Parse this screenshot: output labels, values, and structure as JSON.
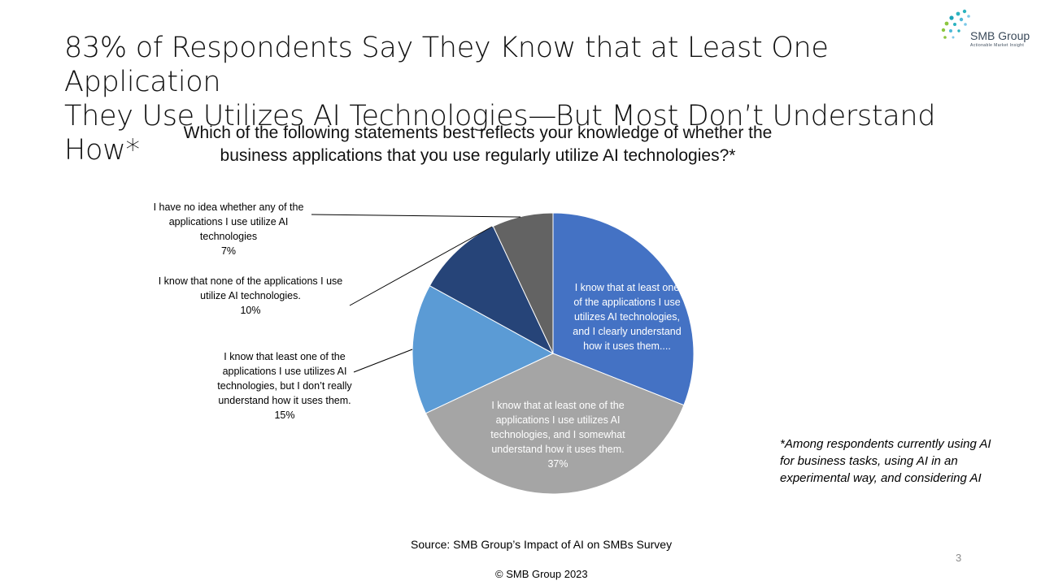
{
  "slide": {
    "title_line1": "83% of Respondents Say They Know that at Least One Application",
    "title_line2": "They Use Utilizes AI Technologies—But Most Don’t Understand How*",
    "question_line1": "Which of the following statements best reflects your knowledge of whether the",
    "question_line2": "business applications that you use regularly utilize AI  technologies?*",
    "footnote": "*Among respondents currently using AI for business tasks, using AI in an experimental way, and considering AI",
    "source": "Source: SMB Group’s Impact of AI on SMBs Survey",
    "page_number": "3",
    "copyright": "© SMB Group  2023"
  },
  "logo": {
    "name": "SMB Group",
    "tagline": "Actionable Market Insight",
    "dot_color": "#2bb3c0"
  },
  "chart_data": {
    "type": "pie",
    "start_angle_deg": 0,
    "direction": "clockwise",
    "slices": [
      {
        "label_lines": [
          "I know that at least one",
          "of the applications I use",
          "utilizes AI technologies,",
          "and I clearly understand",
          "how it uses them...."
        ],
        "value": 31,
        "color": "#4472c4",
        "label_placement": "inside"
      },
      {
        "label_lines": [
          "I know that at least one of the",
          "applications I use utilizes AI",
          "technologies, and I somewhat",
          "understand how it uses them.",
          "37%"
        ],
        "value": 37,
        "color": "#a5a5a5",
        "label_placement": "inside"
      },
      {
        "label_lines": [
          "I know that least one of the",
          "applications I use utilizes AI",
          "technologies, but I don’t really",
          "understand how it uses them.",
          "15%"
        ],
        "value": 15,
        "color": "#5b9bd5",
        "label_placement": "outside-left"
      },
      {
        "label_lines": [
          "I know that none of the applications I use",
          "utilize AI technologies.",
          "10%"
        ],
        "value": 10,
        "color": "#264478",
        "label_placement": "outside-left"
      },
      {
        "label_lines": [
          "I have no idea whether any of the",
          "applications I use utilize AI",
          "technologies",
          "7%"
        ],
        "value": 7,
        "color": "#636363",
        "label_placement": "outside-left"
      }
    ]
  }
}
